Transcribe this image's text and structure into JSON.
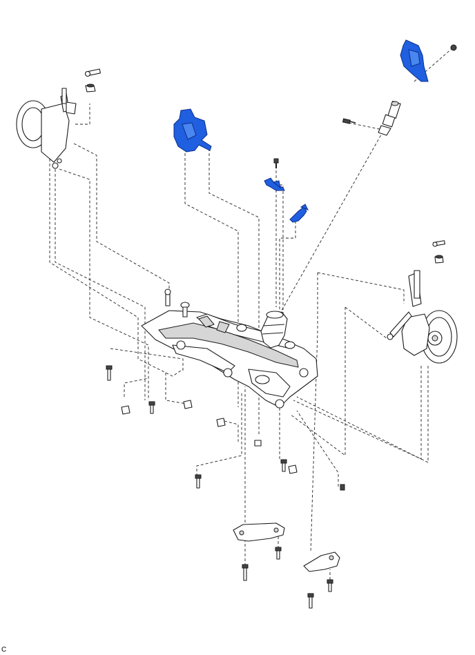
{
  "diagram": {
    "corner_label": "C",
    "highlight_color": "#1f5fe0",
    "line_color": "#222222"
  }
}
